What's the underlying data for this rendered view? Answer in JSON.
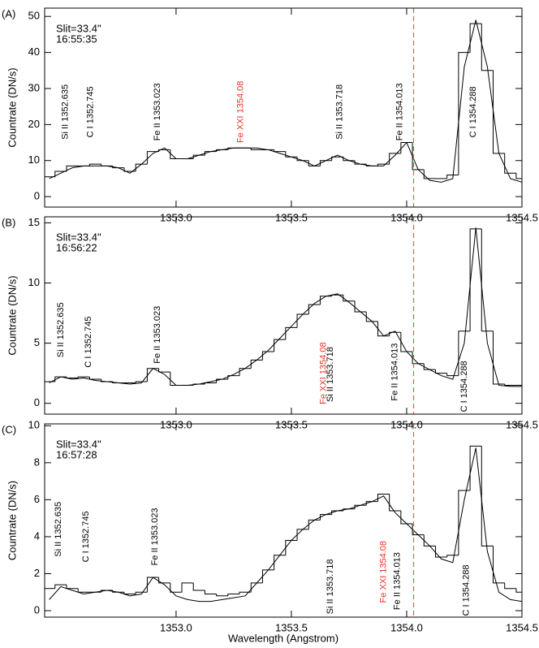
{
  "chart_data": [
    {
      "type": "line",
      "panel_label": "(A)",
      "slit": "Slit=33.4\"",
      "time": "16:55:35",
      "ylabel": "Countrate (DN/s)",
      "x": [
        1352.45,
        1352.5,
        1352.55,
        1352.6,
        1352.65,
        1352.7,
        1352.75,
        1352.8,
        1352.85,
        1352.9,
        1352.95,
        1353,
        1353.05,
        1353.1,
        1353.15,
        1353.2,
        1353.25,
        1353.3,
        1353.35,
        1353.4,
        1353.45,
        1353.5,
        1353.55,
        1353.6,
        1353.65,
        1353.7,
        1353.75,
        1353.8,
        1353.85,
        1353.9,
        1353.95,
        1354,
        1354.05,
        1354.1,
        1354.15,
        1354.2,
        1354.25,
        1354.3,
        1354.35,
        1354.4,
        1354.45,
        1354.5
      ],
      "series": [
        {
          "color": "#000000",
          "step": true,
          "values": [
            5.5,
            7,
            8.5,
            8.5,
            9,
            8.5,
            8,
            7,
            9,
            12.5,
            13,
            10.5,
            10.5,
            11.5,
            12.5,
            13,
            13.5,
            13.5,
            13,
            13,
            12.5,
            11,
            10,
            8.5,
            10,
            11,
            10,
            9,
            8.5,
            9,
            12,
            15,
            7.5,
            5,
            5,
            6,
            40,
            48,
            35,
            12,
            6.5,
            5
          ]
        },
        {
          "color": "#000000",
          "values": [
            5,
            6.5,
            8,
            8.5,
            8.5,
            8.5,
            8,
            6.5,
            9,
            12,
            13.5,
            10.5,
            10.5,
            11.5,
            12.5,
            13,
            13.5,
            13.5,
            13.5,
            13,
            12,
            11,
            10,
            8.5,
            10,
            11.5,
            10,
            9,
            8.5,
            8.5,
            11.5,
            15,
            7.5,
            4.5,
            4,
            5,
            36,
            49,
            36,
            12,
            5,
            4
          ]
        }
      ],
      "xlim": [
        1352.43,
        1354.5
      ],
      "xticks": [
        {
          "value": 1353,
          "label": "1353.0"
        },
        1353.5,
        {
          "value": 1354,
          "label": "1354.0"
        },
        1354.5
      ],
      "ylim": [
        -2.9,
        52.3
      ],
      "yticks": [
        0,
        10,
        20,
        30,
        40,
        50
      ],
      "vline": {
        "x": 1354.03,
        "color": "#e8574a",
        "dashed": true
      },
      "line_labels": [
        {
          "text": "Si II 1352.635",
          "x": 1352.52,
          "y": 23.5,
          "color": "#000000"
        },
        {
          "text": "C I 1352.745",
          "x": 1352.63,
          "y": 23.5,
          "color": "#000000"
        },
        {
          "text": "Fe II 1353.023",
          "x": 1352.92,
          "y": 23.5,
          "color": "#000000"
        },
        {
          "text": "Fe XXI 1354.08",
          "x": 1353.28,
          "y": 23.5,
          "color": "#e8332a"
        },
        {
          "text": "Si II 1353.718",
          "x": 1353.71,
          "y": 23.5,
          "color": "#000000"
        },
        {
          "text": "Fe II 1354.013",
          "x": 1353.97,
          "y": 23.5,
          "color": "#000000"
        },
        {
          "text": "C I 1354.288",
          "x": 1354.29,
          "y": 23.5,
          "color": "#000000"
        }
      ]
    },
    {
      "type": "line",
      "panel_label": "(B)",
      "slit": "Slit=33.4\"",
      "time": "16:56:22",
      "ylabel": "Countrate (DN/s)",
      "x": [
        1352.45,
        1352.5,
        1352.55,
        1352.6,
        1352.65,
        1352.7,
        1352.75,
        1352.8,
        1352.85,
        1352.9,
        1352.95,
        1353,
        1353.05,
        1353.1,
        1353.15,
        1353.2,
        1353.25,
        1353.3,
        1353.35,
        1353.4,
        1353.45,
        1353.5,
        1353.55,
        1353.6,
        1353.65,
        1353.7,
        1353.75,
        1353.8,
        1353.85,
        1353.9,
        1353.95,
        1354,
        1354.05,
        1354.1,
        1354.15,
        1354.2,
        1354.25,
        1354.3,
        1354.35,
        1354.4,
        1354.45,
        1354.5
      ],
      "series": [
        {
          "color": "#000000",
          "step": true,
          "values": [
            1.8,
            2.2,
            2.1,
            2.2,
            2,
            1.8,
            1.7,
            1.7,
            1.8,
            2.9,
            2.6,
            1.5,
            1.5,
            1.6,
            1.7,
            2,
            2.3,
            2.9,
            3.6,
            4.3,
            5.3,
            6.3,
            7.4,
            8.2,
            8.9,
            9,
            8.5,
            7.6,
            6.8,
            5.6,
            5.9,
            4.3,
            3.3,
            2.8,
            2.5,
            2.3,
            6,
            14.5,
            6,
            1.6,
            1.5,
            1.5
          ]
        },
        {
          "color": "#000000",
          "values": [
            1.7,
            2.2,
            2,
            2.1,
            1.9,
            1.8,
            1.7,
            1.6,
            1.7,
            2.9,
            2.4,
            1.5,
            1.5,
            1.6,
            1.8,
            2,
            2.4,
            2.9,
            3.6,
            4.4,
            5.4,
            6.4,
            7.4,
            8.3,
            8.9,
            9.1,
            8.4,
            7.6,
            6.8,
            5.6,
            6,
            4.3,
            3.3,
            2.8,
            2.3,
            2,
            5,
            14.6,
            5,
            1.5,
            1.4,
            1.4
          ]
        }
      ],
      "xlim": [
        1352.43,
        1354.5
      ],
      "xticks": [
        {
          "value": 1353,
          "label": "1353.0"
        },
        1353.5,
        {
          "value": 1354,
          "label": "1354.0"
        },
        1354.5
      ],
      "ylim": [
        -0.9,
        15.5
      ],
      "yticks": [
        0,
        5,
        10,
        15
      ],
      "vline": {
        "x": 1354.03,
        "color": "#e8574a",
        "dashed": true
      },
      "line_labels": [
        {
          "text": "Si II 1352.635",
          "x": 1352.5,
          "y": 6.1,
          "color": "#000000"
        },
        {
          "text": "C I 1352.745",
          "x": 1352.62,
          "y": 5.1,
          "color": "#000000"
        },
        {
          "text": "Fe II 1353.023",
          "x": 1352.92,
          "y": 5.7,
          "color": "#000000"
        },
        {
          "text": "Fe XXI 1354.08",
          "x": 1353.64,
          "y": 2.5,
          "color": "#e8332a"
        },
        {
          "text": "Si II 1353.718",
          "x": 1353.67,
          "y": 2.4,
          "color": "#000000"
        },
        {
          "text": "Fe II 1354.013",
          "x": 1353.95,
          "y": 2.6,
          "color": "#000000"
        },
        {
          "text": "C I 1354.288",
          "x": 1354.25,
          "y": 1.4,
          "color": "#000000"
        }
      ]
    },
    {
      "type": "line",
      "panel_label": "(C)",
      "slit": "Slit=33.4\"",
      "time": "16:57:28",
      "ylabel": "Countrate (DN/s)",
      "xlabel": "Wavelength (Angstrom)",
      "x": [
        1352.45,
        1352.5,
        1352.55,
        1352.6,
        1352.65,
        1352.7,
        1352.75,
        1352.8,
        1352.85,
        1352.9,
        1352.95,
        1353,
        1353.05,
        1353.1,
        1353.15,
        1353.2,
        1353.25,
        1353.3,
        1353.35,
        1353.4,
        1353.45,
        1353.5,
        1353.55,
        1353.6,
        1353.65,
        1353.7,
        1353.75,
        1353.8,
        1353.85,
        1353.9,
        1353.95,
        1354,
        1354.05,
        1354.1,
        1354.15,
        1354.2,
        1354.25,
        1354.3,
        1354.35,
        1354.4,
        1354.45,
        1354.5
      ],
      "series": [
        {
          "color": "#000000",
          "step": true,
          "values": [
            1.2,
            1.4,
            1.2,
            1,
            1,
            1.1,
            1,
            0.9,
            1,
            1.8,
            1.5,
            1,
            1.5,
            1.1,
            0.9,
            0.8,
            0.9,
            1,
            1.5,
            2.2,
            3,
            3.8,
            4.4,
            4.9,
            5.2,
            5.4,
            5.5,
            5.7,
            5.9,
            6.3,
            5.4,
            4.7,
            4.1,
            3.5,
            2.9,
            3,
            6.5,
            8.9,
            3.5,
            1.5,
            1.2,
            1
          ]
        },
        {
          "color": "#000000",
          "values": [
            0.6,
            1.3,
            1.1,
            0.9,
            1,
            1.1,
            1,
            0.8,
            0.9,
            1.8,
            1.4,
            0.8,
            0.6,
            0.5,
            0.5,
            0.6,
            0.7,
            0.8,
            1.5,
            2.2,
            3,
            3.8,
            4.4,
            4.9,
            5.2,
            5.4,
            5.5,
            5.7,
            5.9,
            6.2,
            5.3,
            4.7,
            4.1,
            3.5,
            2.8,
            2.6,
            6,
            8.8,
            3.2,
            1,
            0.6,
            0.5
          ]
        }
      ],
      "xlim": [
        1352.43,
        1354.5
      ],
      "xticks": [
        {
          "value": 1353,
          "label": "1353.0"
        },
        1353.5,
        {
          "value": 1354,
          "label": "1354.0"
        },
        1354.5
      ],
      "ylim": [
        -0.35,
        10.1
      ],
      "yticks": [
        0,
        2,
        4,
        6,
        8,
        10
      ],
      "vline": {
        "x": 1354.03,
        "color": "#e8574a",
        "dashed": true
      },
      "line_labels": [
        {
          "text": "Si II 1352.635",
          "x": 1352.49,
          "y": 4.4,
          "color": "#000000"
        },
        {
          "text": "C I 1352.745",
          "x": 1352.61,
          "y": 4.0,
          "color": "#000000"
        },
        {
          "text": "Fe II 1353.023",
          "x": 1352.91,
          "y": 4.0,
          "color": "#000000"
        },
        {
          "text": "Si II 1353.718",
          "x": 1353.67,
          "y": 1.3,
          "color": "#000000"
        },
        {
          "text": "Fe XXI 1354.08",
          "x": 1353.9,
          "y": 2.1,
          "color": "#e8332a"
        },
        {
          "text": "Fe II 1354.013",
          "x": 1353.96,
          "y": 1.6,
          "color": "#000000"
        },
        {
          "text": "C I 1354.288",
          "x": 1354.26,
          "y": 1.1,
          "color": "#000000"
        }
      ]
    }
  ]
}
